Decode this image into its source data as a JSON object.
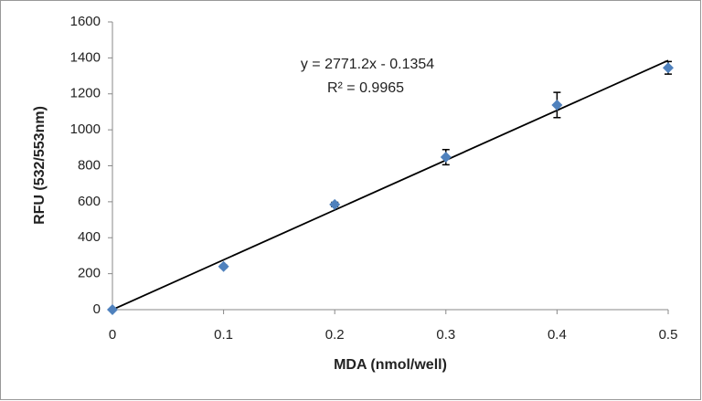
{
  "chart_data": {
    "type": "scatter",
    "x_label": "MDA (nmol/well)",
    "y_label": "RFU (532/553nm)",
    "x": [
      0,
      0.1,
      0.2,
      0.3,
      0.4,
      0.5
    ],
    "series": [
      {
        "color": "#4f81bd",
        "values": [
          0,
          240,
          585,
          848,
          1138,
          1345
        ],
        "errors": [
          0,
          8,
          12,
          42,
          70,
          35
        ]
      }
    ],
    "trendline": {
      "slope": 2771.2,
      "intercept": -0.1354,
      "equation": "y = 2771.2x - 0.1354",
      "r_squared": "R² = 0.9965",
      "color": "#000000"
    },
    "xlim": [
      0,
      0.5
    ],
    "xticks": [
      0,
      0.1,
      0.2,
      0.3,
      0.4,
      0.5
    ],
    "ylim": [
      0,
      1600
    ],
    "yticks": [
      0,
      200,
      400,
      600,
      800,
      1000,
      1200,
      1400,
      1600
    ],
    "grid": false
  }
}
